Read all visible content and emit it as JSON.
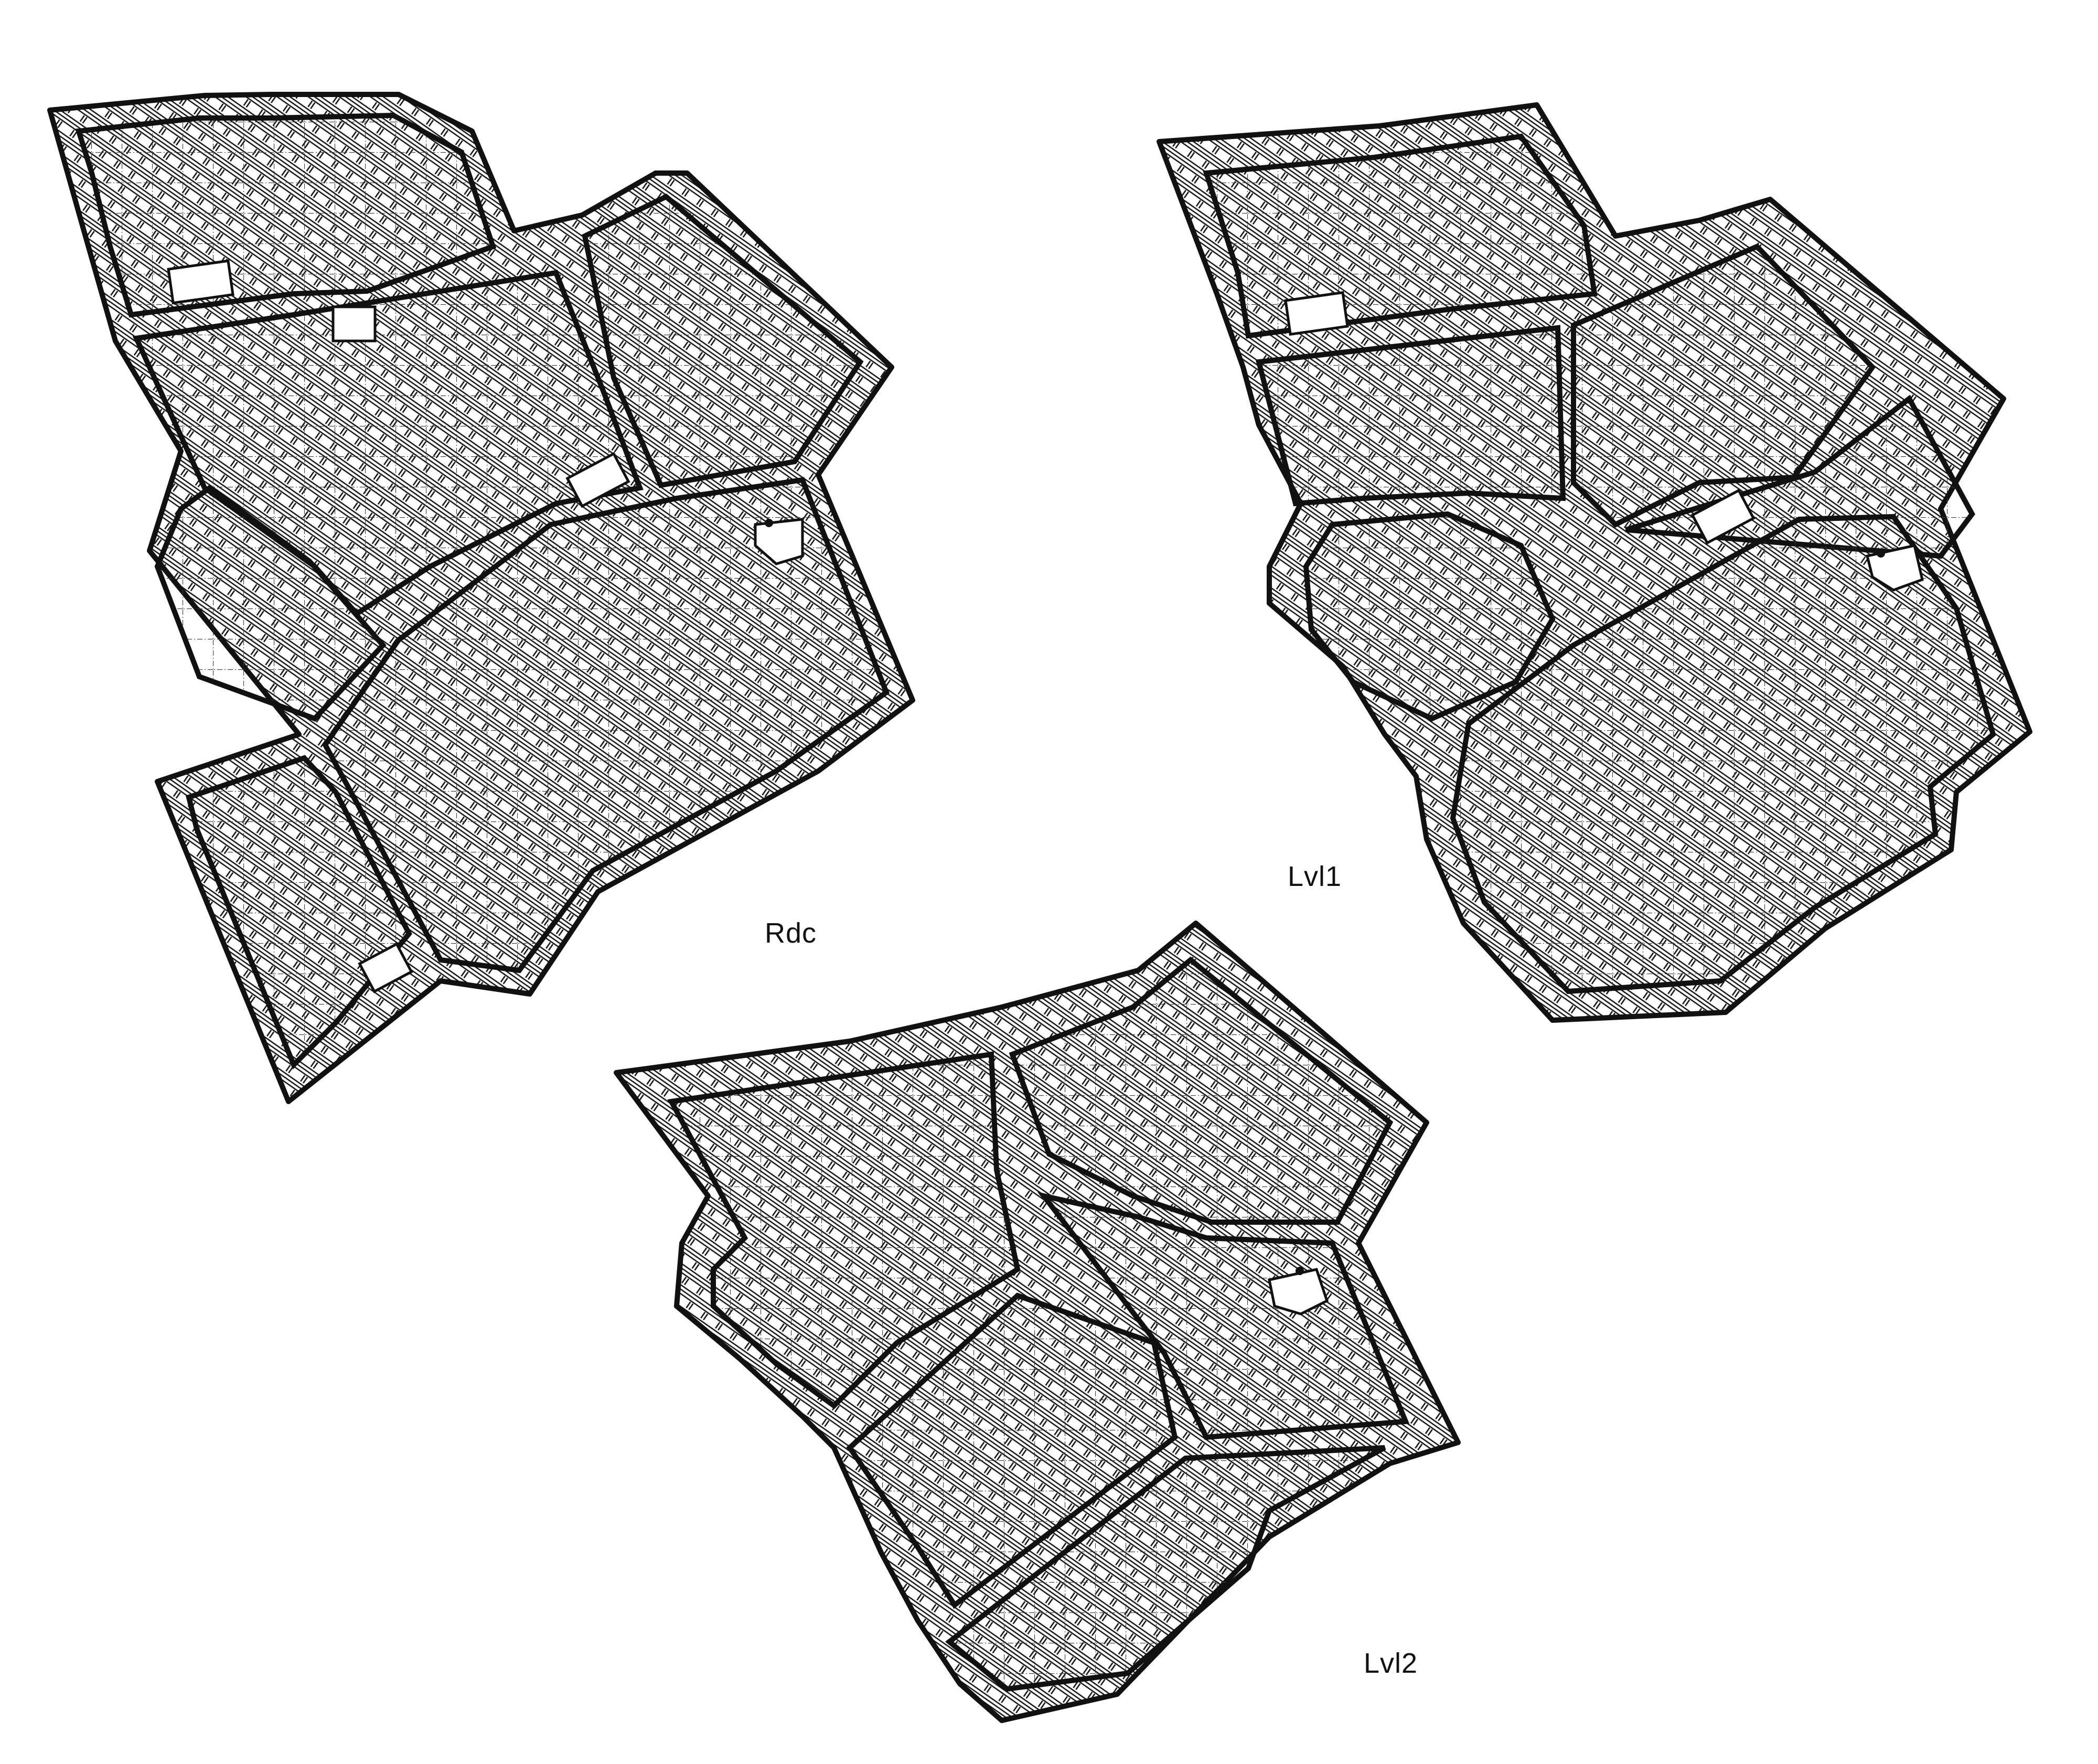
{
  "floors": [
    {
      "id": "rdc",
      "label": "Rdc"
    },
    {
      "id": "lvl1",
      "label": "Lvl1"
    },
    {
      "id": "lvl2",
      "label": "Lvl2"
    }
  ],
  "colors": {
    "ink": "#111111",
    "paper": "#ffffff",
    "grid": "#3a3a3a"
  },
  "icons": [
    "stair-icon",
    "ladder-icon",
    "door-icon"
  ]
}
